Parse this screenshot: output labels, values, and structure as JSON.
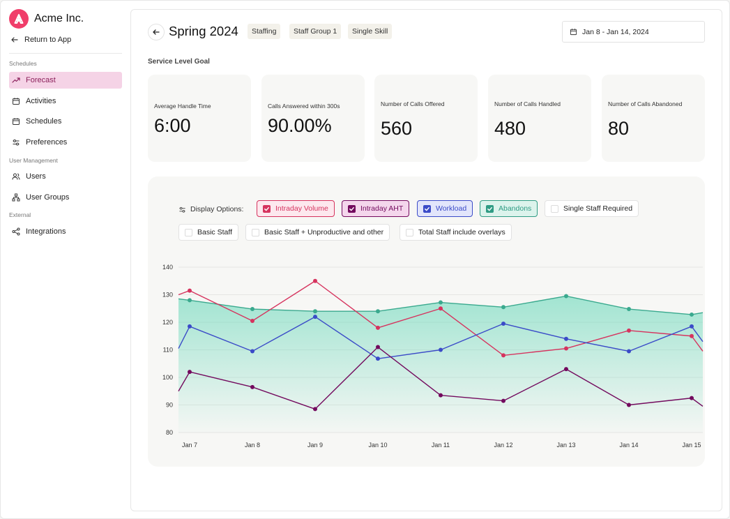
{
  "brand": {
    "name": "Acme Inc."
  },
  "sidebar": {
    "back_label": "Return to App",
    "sections": {
      "schedules": "Schedules",
      "user_management": "User Management",
      "external": "External"
    },
    "items": [
      {
        "label": "Forecast",
        "icon": "trending-up-icon"
      },
      {
        "label": "Activities",
        "icon": "calendar-icon"
      },
      {
        "label": "Schedules",
        "icon": "calendar-icon"
      },
      {
        "label": "Preferences",
        "icon": "sliders-icon"
      },
      {
        "label": "Users",
        "icon": "users-icon"
      },
      {
        "label": "User Groups",
        "icon": "hierarchy-icon"
      },
      {
        "label": "Integrations",
        "icon": "share-icon"
      }
    ]
  },
  "header": {
    "title": "Spring 2024",
    "tags": [
      "Staffing",
      "Staff Group 1",
      "Single Skill"
    ],
    "date_range": "Jan 8 - Jan 14, 2024"
  },
  "service_level": {
    "title": "Service Level Goal",
    "kpis": [
      {
        "label": "Average Handle Time",
        "value": "6:00"
      },
      {
        "label": "Calls Answered within 300s",
        "value": "90.00%"
      },
      {
        "label": "Number of Calls Offered",
        "value": "560"
      },
      {
        "label": "Number of Calls Handled",
        "value": "480"
      },
      {
        "label": "Number of Calls Abandoned",
        "value": "80"
      }
    ]
  },
  "display_options": {
    "label": "Display Options:",
    "options": [
      {
        "label": "Intraday Volume",
        "checked": true,
        "color": "#d6335e",
        "bg": "#fde8ee"
      },
      {
        "label": "Intraday AHT",
        "checked": true,
        "color": "#730a5e",
        "bg": "#f4d6ec"
      },
      {
        "label": "Workload",
        "checked": true,
        "color": "#3b4bc8",
        "bg": "#e2e5fb"
      },
      {
        "label": "Abandons",
        "checked": true,
        "color": "#2f9c84",
        "bg": "#dcf3ec"
      },
      {
        "label": "Single Staff Required",
        "checked": false
      },
      {
        "label": "Basic Staff",
        "checked": false
      },
      {
        "label": "Basic Staff + Unproductive and other",
        "checked": false
      },
      {
        "label": "Total Staff include overlays",
        "checked": false
      }
    ]
  },
  "chart_data": {
    "type": "line",
    "categories": [
      "Jan 7",
      "Jan 8",
      "Jan 9",
      "Jan 10",
      "Jan 11",
      "Jan 12",
      "Jan 13",
      "Jan 14",
      "Jan 15"
    ],
    "ylim": [
      80,
      140
    ],
    "yticks": [
      80,
      90,
      100,
      110,
      120,
      130,
      140
    ],
    "series": [
      {
        "name": "Abandons",
        "color": "#3aa98e",
        "area": true,
        "start": 128.5,
        "end": 123.5,
        "values": [
          128,
          124.8,
          124,
          124,
          127.2,
          125.5,
          129.5,
          124.8,
          122.8
        ]
      },
      {
        "name": "Intraday Volume",
        "color": "#d6335e",
        "start": 130,
        "end": 109.5,
        "values": [
          131.5,
          120.5,
          135,
          118,
          125,
          108,
          110.5,
          117,
          115
        ]
      },
      {
        "name": "Workload",
        "color": "#3b4bc8",
        "start": 110.5,
        "end": 113,
        "values": [
          118.5,
          109.5,
          122,
          106.8,
          110,
          119.5,
          114,
          109.5,
          118.5
        ]
      },
      {
        "name": "Intraday AHT",
        "color": "#730a5e",
        "start": 95,
        "end": 89.5,
        "values": [
          102,
          96.5,
          88.5,
          111,
          93.5,
          91.5,
          103,
          90,
          92.5
        ]
      }
    ]
  }
}
